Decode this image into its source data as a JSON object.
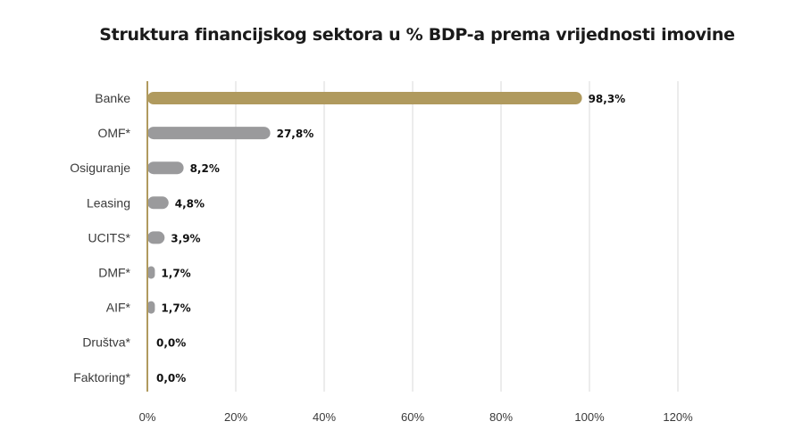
{
  "chart_data": {
    "type": "bar",
    "orientation": "horizontal",
    "title": "Struktura financijskog sektora u % BDP-a prema vrijednosti imovine",
    "categories": [
      "Banke",
      "OMF*",
      "Osiguranje",
      "Leasing",
      "UCITS*",
      "DMF*",
      "AIF*",
      "Društva*",
      "Faktoring*"
    ],
    "values": [
      98.3,
      27.8,
      8.2,
      4.8,
      3.9,
      1.7,
      1.7,
      0.0,
      0.0
    ],
    "value_labels": [
      "98,3%",
      "27,8%",
      "8,2%",
      "4,8%",
      "3,9%",
      "1,7%",
      "1,7%",
      "0,0%",
      "0,0%"
    ],
    "x_ticks": [
      0,
      20,
      40,
      60,
      80,
      100,
      120
    ],
    "x_tick_labels": [
      "0%",
      "20%",
      "40%",
      "60%",
      "80%",
      "100%",
      "120%"
    ],
    "xlim": [
      0,
      120
    ],
    "xlabel": "",
    "ylabel": "",
    "grid": "vertical",
    "legend": "none",
    "colors": {
      "highlight": "#b09a5e",
      "bar": "#9a9a9c",
      "grid": "#d9d9d9",
      "axis": "#b09a5e"
    },
    "highlight_index": 0
  }
}
